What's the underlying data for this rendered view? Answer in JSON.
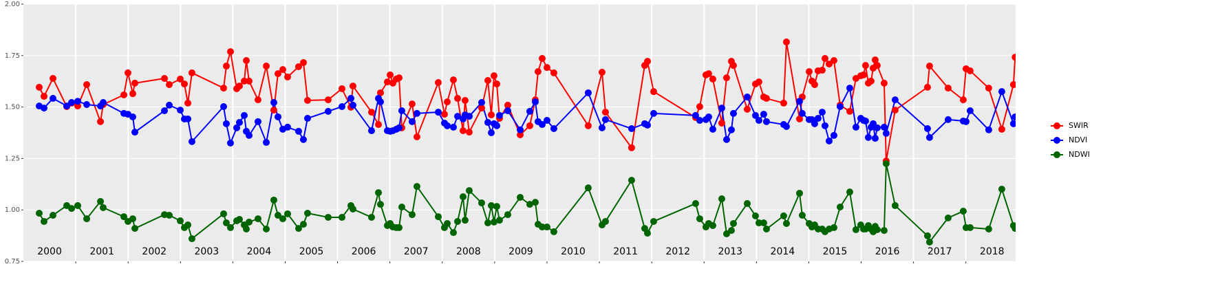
{
  "chart_data": {
    "type": "line",
    "x": [
      2000.302,
      2000.394,
      2000.565,
      2000.828,
      2000.92,
      2001.038,
      2001.209,
      2001.472,
      2001.524,
      2001.919,
      2001.997,
      2002.089,
      2002.129,
      2002.694,
      2002.786,
      2002.996,
      2003.075,
      2003.141,
      2003.219,
      2003.824,
      2003.876,
      2003.955,
      2004.074,
      2004.126,
      2004.218,
      2004.258,
      2004.31,
      2004.481,
      2004.639,
      2004.783,
      2004.862,
      2004.954,
      2005.046,
      2005.256,
      2005.348,
      2005.427,
      2005.821,
      2006.084,
      2006.255,
      2006.294,
      2006.649,
      2006.781,
      2006.82,
      2006.951,
      2007.004,
      2007.057,
      2007.122,
      2007.175,
      2007.227,
      2007.424,
      2007.516,
      2007.924,
      2008.042,
      2008.095,
      2008.213,
      2008.292,
      2008.397,
      2008.436,
      2008.515,
      2008.752,
      2008.87,
      2008.936,
      2008.988,
      2009.041,
      2009.093,
      2009.251,
      2009.488,
      2009.671,
      2009.777,
      2009.829,
      2009.908,
      2010.0,
      2010.131,
      2010.788,
      2011.051,
      2011.117,
      2011.616,
      2011.866,
      2011.919,
      2012.037,
      2012.838,
      2012.917,
      2013.035,
      2013.088,
      2013.167,
      2013.338,
      2013.43,
      2013.522,
      2013.561,
      2013.824,
      2013.982,
      2014.047,
      2014.139,
      2014.192,
      2014.52,
      2014.573,
      2014.823,
      2014.875,
      2015.007,
      2015.059,
      2015.112,
      2015.177,
      2015.256,
      2015.309,
      2015.388,
      2015.48,
      2015.598,
      2015.782,
      2015.9,
      2015.992,
      2016.045,
      2016.084,
      2016.137,
      2016.189,
      2016.229,
      2016.268,
      2016.307,
      2016.439,
      2016.478,
      2016.649,
      2017.267,
      2017.306,
      2017.661,
      2017.95,
      2018.003,
      2018.081,
      2018.436,
      2018.686,
      2018.909,
      2018.94
    ],
    "series": [
      {
        "name": "SWIR",
        "color": "#ff0000",
        "values": [
          1.596,
          1.552,
          1.639,
          1.502,
          1.519,
          1.505,
          1.609,
          1.429,
          1.512,
          1.559,
          1.666,
          1.565,
          1.616,
          1.639,
          1.609,
          1.636,
          1.612,
          1.519,
          1.666,
          1.592,
          1.699,
          1.769,
          1.589,
          1.602,
          1.626,
          1.726,
          1.626,
          1.535,
          1.699,
          1.485,
          1.662,
          1.682,
          1.646,
          1.696,
          1.716,
          1.532,
          1.535,
          1.589,
          1.499,
          1.602,
          1.475,
          1.415,
          1.569,
          1.622,
          1.656,
          1.616,
          1.636,
          1.642,
          1.399,
          1.515,
          1.355,
          1.619,
          1.465,
          1.525,
          1.632,
          1.542,
          1.385,
          1.532,
          1.378,
          1.495,
          1.629,
          1.462,
          1.652,
          1.612,
          1.445,
          1.509,
          1.365,
          1.409,
          1.535,
          1.672,
          1.736,
          1.692,
          1.666,
          1.409,
          1.669,
          1.475,
          1.302,
          1.702,
          1.722,
          1.575,
          1.449,
          1.502,
          1.656,
          1.662,
          1.636,
          1.422,
          1.642,
          1.722,
          1.702,
          1.489,
          1.612,
          1.622,
          1.549,
          1.542,
          1.519,
          1.816,
          1.442,
          1.549,
          1.672,
          1.626,
          1.609,
          1.676,
          1.679,
          1.736,
          1.709,
          1.726,
          1.509,
          1.479,
          1.639,
          1.652,
          1.656,
          1.702,
          1.616,
          1.626,
          1.689,
          1.729,
          1.702,
          1.616,
          1.238,
          1.485,
          1.596,
          1.699,
          1.592,
          1.535,
          1.686,
          1.676,
          1.592,
          1.392,
          1.609,
          1.742
        ]
      },
      {
        "name": "NDVI",
        "color": "#0000ff",
        "values": [
          1.505,
          1.495,
          1.542,
          1.505,
          1.522,
          1.528,
          1.512,
          1.505,
          1.522,
          1.469,
          1.465,
          1.452,
          1.378,
          1.482,
          1.509,
          1.485,
          1.442,
          1.442,
          1.332,
          1.502,
          1.419,
          1.325,
          1.399,
          1.425,
          1.459,
          1.382,
          1.362,
          1.429,
          1.328,
          1.522,
          1.452,
          1.392,
          1.402,
          1.382,
          1.342,
          1.445,
          1.479,
          1.502,
          1.542,
          1.509,
          1.385,
          1.542,
          1.525,
          1.385,
          1.382,
          1.385,
          1.392,
          1.399,
          1.482,
          1.429,
          1.469,
          1.475,
          1.422,
          1.409,
          1.402,
          1.455,
          1.442,
          1.462,
          1.455,
          1.522,
          1.425,
          1.375,
          1.419,
          1.409,
          1.459,
          1.482,
          1.389,
          1.479,
          1.525,
          1.429,
          1.415,
          1.435,
          1.395,
          1.569,
          1.399,
          1.439,
          1.395,
          1.419,
          1.412,
          1.469,
          1.459,
          1.435,
          1.439,
          1.452,
          1.392,
          1.495,
          1.342,
          1.389,
          1.469,
          1.549,
          1.459,
          1.435,
          1.465,
          1.429,
          1.415,
          1.405,
          1.528,
          1.469,
          1.439,
          1.439,
          1.419,
          1.445,
          1.475,
          1.409,
          1.335,
          1.362,
          1.502,
          1.592,
          1.402,
          1.445,
          1.435,
          1.432,
          1.352,
          1.402,
          1.419,
          1.348,
          1.399,
          1.402,
          1.372,
          1.535,
          1.395,
          1.352,
          1.439,
          1.432,
          1.429,
          1.482,
          1.389,
          1.575,
          1.419,
          1.452
        ]
      },
      {
        "name": "NDWI",
        "color": "#006400",
        "values": [
          0.984,
          0.944,
          0.974,
          1.021,
          1.007,
          1.021,
          0.957,
          1.041,
          1.011,
          0.967,
          0.944,
          0.957,
          0.91,
          0.977,
          0.974,
          0.947,
          0.914,
          0.927,
          0.86,
          0.981,
          0.937,
          0.914,
          0.947,
          0.954,
          0.927,
          0.907,
          0.941,
          0.957,
          0.907,
          1.048,
          0.974,
          0.957,
          0.981,
          0.91,
          0.93,
          0.984,
          0.964,
          0.964,
          1.021,
          1.004,
          0.964,
          1.084,
          1.027,
          0.924,
          0.934,
          0.917,
          0.914,
          0.914,
          1.014,
          0.977,
          1.114,
          0.967,
          0.914,
          0.934,
          0.89,
          0.944,
          1.064,
          0.95,
          1.094,
          1.034,
          0.937,
          1.021,
          0.941,
          1.017,
          0.95,
          0.977,
          1.061,
          1.027,
          1.037,
          0.93,
          0.917,
          0.917,
          0.894,
          1.107,
          0.927,
          0.944,
          1.144,
          0.91,
          0.887,
          0.944,
          1.031,
          0.957,
          0.917,
          0.934,
          0.924,
          1.054,
          0.884,
          0.9,
          0.934,
          1.031,
          0.971,
          0.937,
          0.937,
          0.907,
          0.971,
          0.934,
          1.081,
          0.974,
          0.934,
          0.917,
          0.927,
          0.907,
          0.907,
          0.894,
          0.907,
          0.914,
          1.014,
          1.087,
          0.904,
          0.927,
          0.907,
          0.907,
          0.924,
          0.907,
          0.894,
          0.92,
          0.904,
          0.9,
          1.225,
          1.021,
          0.874,
          0.844,
          0.961,
          0.994,
          0.914,
          0.914,
          0.907,
          1.101,
          0.924,
          0.91
        ]
      }
    ],
    "xlim": [
      2000,
      2018.95
    ],
    "xticks": [
      2001,
      2002,
      2003,
      2004,
      2005,
      2006,
      2007,
      2008,
      2009,
      2010,
      2011,
      2012,
      2013,
      2014,
      2015,
      2016,
      2017,
      2018
    ],
    "year_labels": [
      "2000",
      "2001",
      "2002",
      "2003",
      "2004",
      "2005",
      "2006",
      "2007",
      "2008",
      "2009",
      "2010",
      "2011",
      "2012",
      "2013",
      "2014",
      "2015",
      "2016",
      "2017",
      "2018"
    ],
    "ylim": [
      0.75,
      2.0
    ],
    "yticks": [
      {
        "value": 0.75,
        "label": "0.75"
      },
      {
        "value": 1.0,
        "label": "1.00"
      },
      {
        "value": 1.25,
        "label": "1.25"
      },
      {
        "value": 1.5,
        "label": "1.50"
      },
      {
        "value": 1.75,
        "label": "1.75"
      },
      {
        "value": 2.0,
        "label": "2.00"
      }
    ],
    "grid": true,
    "legend": "right"
  }
}
